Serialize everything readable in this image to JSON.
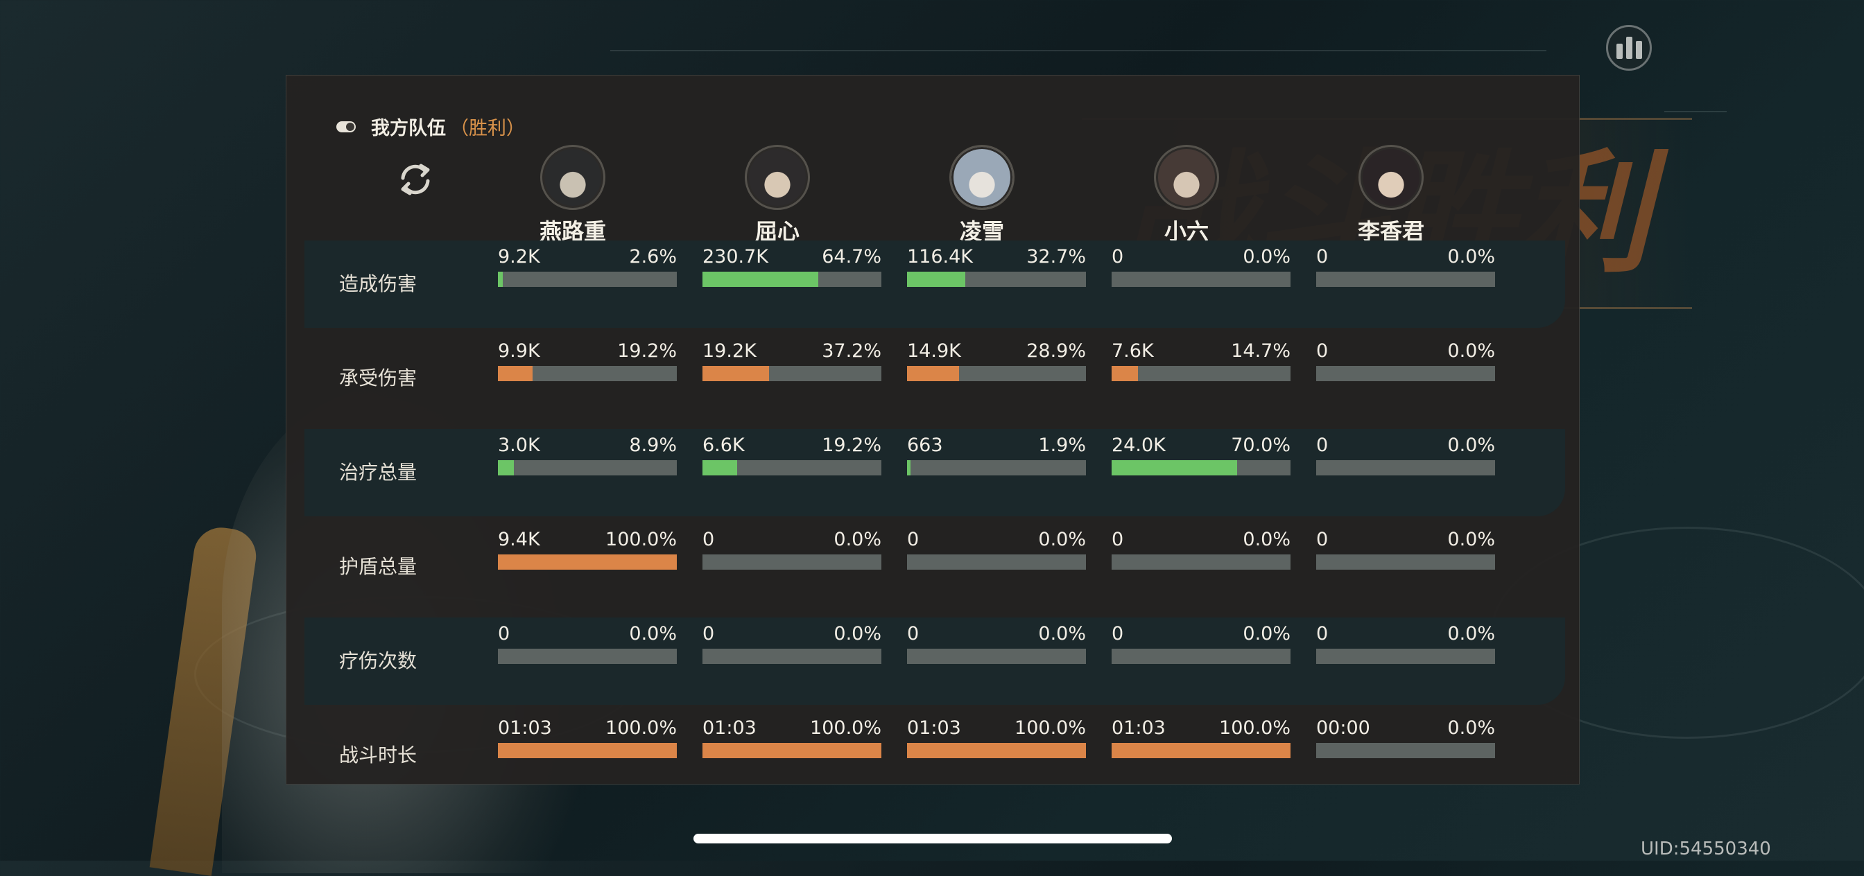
{
  "team": {
    "name": "我方队伍",
    "result": "（胜利）"
  },
  "characters": [
    {
      "name": "燕路重"
    },
    {
      "name": "屈心"
    },
    {
      "name": "凌雪"
    },
    {
      "name": "小六"
    },
    {
      "name": "李香君"
    }
  ],
  "stats": [
    {
      "label": "造成伤害",
      "cells": [
        {
          "value": "9.2K",
          "percent": "2.6%",
          "fraction": 0.026,
          "color": "green"
        },
        {
          "value": "230.7K",
          "percent": "64.7%",
          "fraction": 0.647,
          "color": "green"
        },
        {
          "value": "116.4K",
          "percent": "32.7%",
          "fraction": 0.327,
          "color": "green"
        },
        {
          "value": "0",
          "percent": "0.0%",
          "fraction": 0,
          "color": "green"
        },
        {
          "value": "0",
          "percent": "0.0%",
          "fraction": 0,
          "color": "green"
        }
      ]
    },
    {
      "label": "承受伤害",
      "cells": [
        {
          "value": "9.9K",
          "percent": "19.2%",
          "fraction": 0.192,
          "color": "orange"
        },
        {
          "value": "19.2K",
          "percent": "37.2%",
          "fraction": 0.372,
          "color": "orange"
        },
        {
          "value": "14.9K",
          "percent": "28.9%",
          "fraction": 0.289,
          "color": "orange"
        },
        {
          "value": "7.6K",
          "percent": "14.7%",
          "fraction": 0.147,
          "color": "orange"
        },
        {
          "value": "0",
          "percent": "0.0%",
          "fraction": 0,
          "color": "orange"
        }
      ]
    },
    {
      "label": "治疗总量",
      "cells": [
        {
          "value": "3.0K",
          "percent": "8.9%",
          "fraction": 0.089,
          "color": "green"
        },
        {
          "value": "6.6K",
          "percent": "19.2%",
          "fraction": 0.192,
          "color": "green"
        },
        {
          "value": "663",
          "percent": "1.9%",
          "fraction": 0.019,
          "color": "green"
        },
        {
          "value": "24.0K",
          "percent": "70.0%",
          "fraction": 0.7,
          "color": "green"
        },
        {
          "value": "0",
          "percent": "0.0%",
          "fraction": 0,
          "color": "green"
        }
      ]
    },
    {
      "label": "护盾总量",
      "cells": [
        {
          "value": "9.4K",
          "percent": "100.0%",
          "fraction": 1.0,
          "color": "orange"
        },
        {
          "value": "0",
          "percent": "0.0%",
          "fraction": 0,
          "color": "orange"
        },
        {
          "value": "0",
          "percent": "0.0%",
          "fraction": 0,
          "color": "orange"
        },
        {
          "value": "0",
          "percent": "0.0%",
          "fraction": 0,
          "color": "orange"
        },
        {
          "value": "0",
          "percent": "0.0%",
          "fraction": 0,
          "color": "orange"
        }
      ]
    },
    {
      "label": "疗伤次数",
      "cells": [
        {
          "value": "0",
          "percent": "0.0%",
          "fraction": 0,
          "color": "green"
        },
        {
          "value": "0",
          "percent": "0.0%",
          "fraction": 0,
          "color": "green"
        },
        {
          "value": "0",
          "percent": "0.0%",
          "fraction": 0,
          "color": "green"
        },
        {
          "value": "0",
          "percent": "0.0%",
          "fraction": 0,
          "color": "green"
        },
        {
          "value": "0",
          "percent": "0.0%",
          "fraction": 0,
          "color": "green"
        }
      ]
    },
    {
      "label": "战斗时长",
      "cells": [
        {
          "value": "01:03",
          "percent": "100.0%",
          "fraction": 1.0,
          "color": "orange"
        },
        {
          "value": "01:03",
          "percent": "100.0%",
          "fraction": 1.0,
          "color": "orange"
        },
        {
          "value": "01:03",
          "percent": "100.0%",
          "fraction": 1.0,
          "color": "orange"
        },
        {
          "value": "01:03",
          "percent": "100.0%",
          "fraction": 1.0,
          "color": "orange"
        },
        {
          "value": "00:00",
          "percent": "0.0%",
          "fraction": 0,
          "color": "orange"
        }
      ]
    }
  ],
  "background_title": "战斗胜利",
  "uid": "UID:54550340",
  "icons": {
    "stats_button": "bar-chart-icon",
    "swap": "refresh-icon",
    "toggle": "toggle-icon"
  },
  "colors": {
    "green": "#6cc566",
    "orange": "#db8548",
    "bar_track": "#5d6462",
    "accent": "#d8924a"
  }
}
